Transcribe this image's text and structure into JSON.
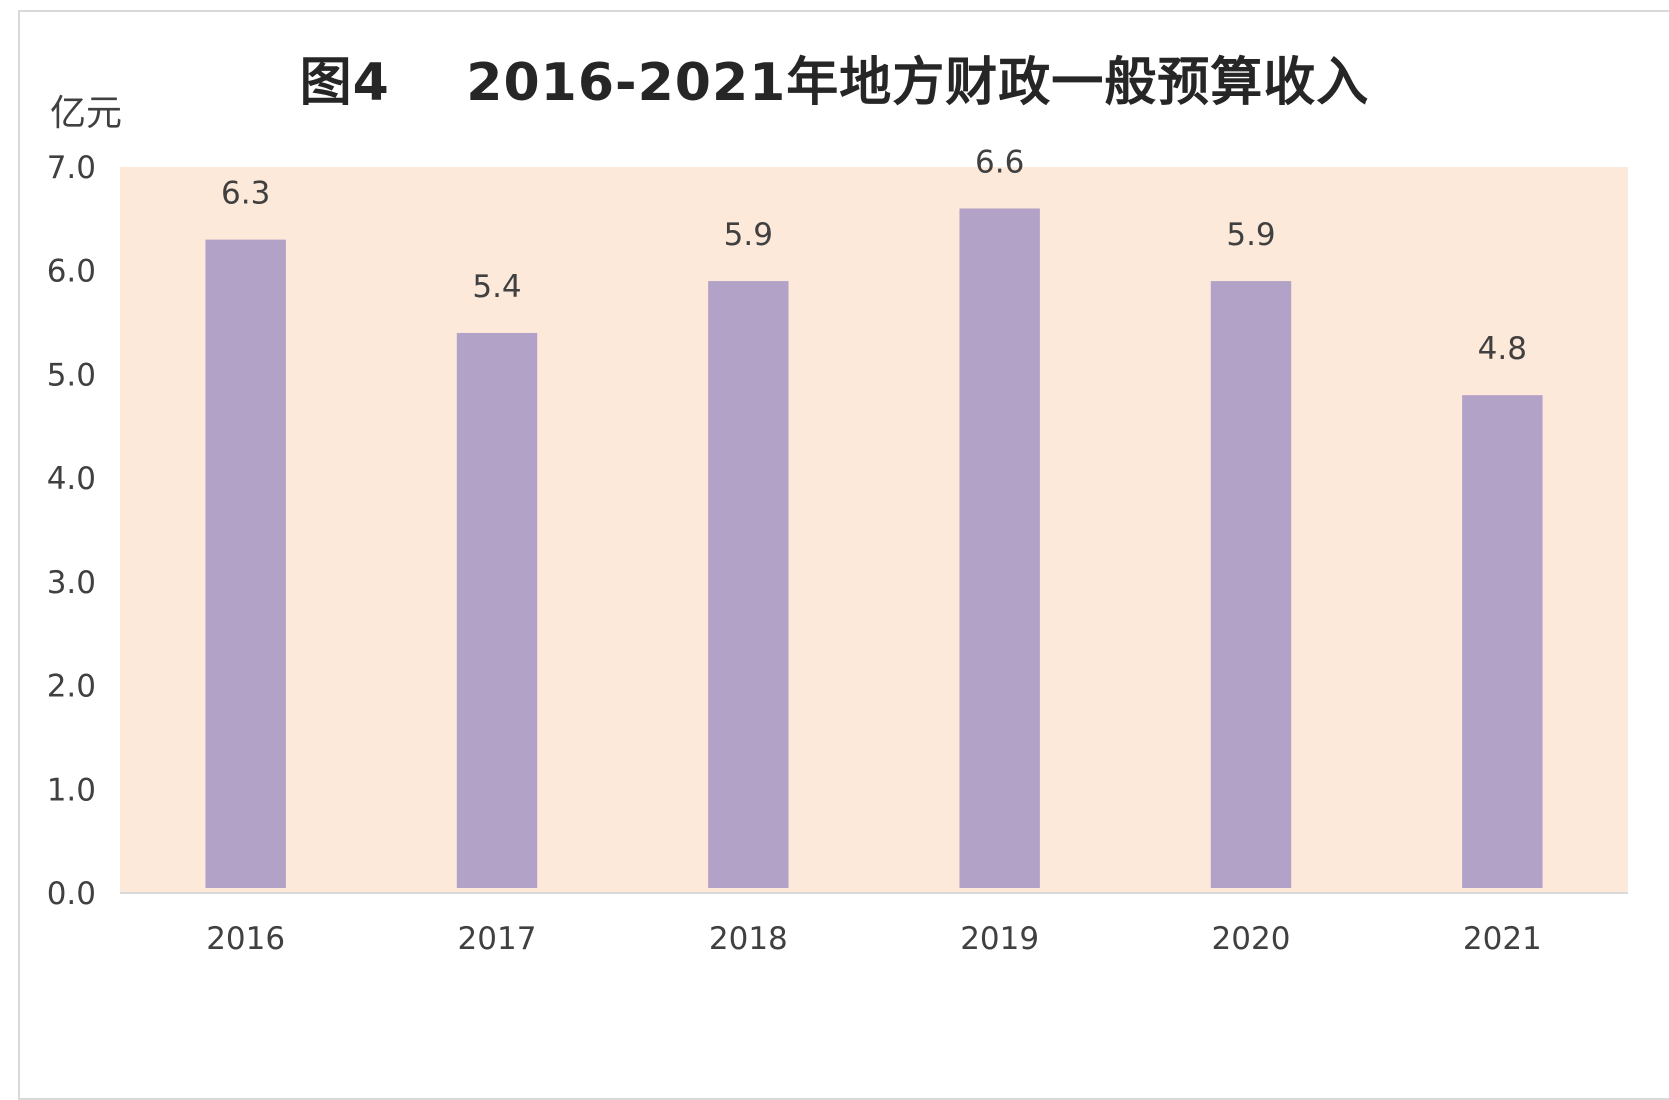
{
  "chart_data": {
    "type": "bar",
    "title": "图4    2016-2021年地方财政一般预算收入",
    "ylabel": "亿元",
    "xlabel": "",
    "categories": [
      "2016",
      "2017",
      "2018",
      "2019",
      "2020",
      "2021"
    ],
    "values": [
      6.3,
      5.4,
      5.9,
      6.6,
      5.9,
      4.8
    ],
    "data_labels": [
      "6.3",
      "5.4",
      "5.9",
      "6.6",
      "5.9",
      "4.8"
    ],
    "ylim": [
      0,
      7
    ],
    "y_ticks": [
      "0.0",
      "1.0",
      "2.0",
      "3.0",
      "4.0",
      "5.0",
      "6.0",
      "7.0"
    ],
    "grid": false,
    "legend": "none",
    "colors": {
      "bar": "#b3a2c7",
      "plot_background": "#fde9d9",
      "axis_line": "#d9d9d9"
    }
  }
}
